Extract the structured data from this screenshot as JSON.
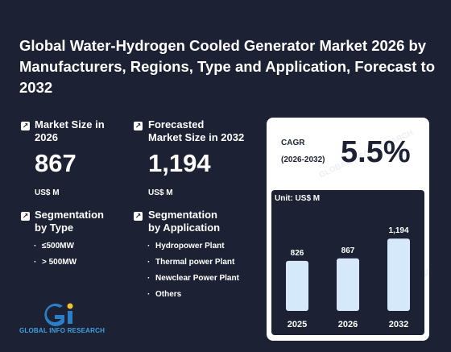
{
  "title": "Global Water-Hydrogen Cooled Generator Market 2026 by Manufacturers, Regions, Type and Application, Forecast to 2032",
  "metrics": {
    "market_size": {
      "label_line1": "Market Size in",
      "label_line2": "2026",
      "value": "867",
      "unit": "US$ M"
    },
    "forecast_size": {
      "label_line1": "Forecasted",
      "label_line2": "Market Size in 2032",
      "value": "1,194",
      "unit": "US$ M"
    }
  },
  "segmentation_type": {
    "label_line1": "Segmentation",
    "label_line2": "by Type",
    "items": [
      "≤500MW",
      "> 500MW"
    ]
  },
  "segmentation_application": {
    "label_line1": "Segmentation",
    "label_line2": "by Application",
    "items": [
      "Hydropower Plant",
      "Thermal power Plant",
      "Newclear Power Plant",
      "Others"
    ]
  },
  "cagr": {
    "label": "CAGR",
    "years": "(2026-2032)",
    "value": "5.5%"
  },
  "watermark": "GLOBAL INFO RESEARCH",
  "logo": {
    "text": "GLOBAL INFO RESEARCH"
  },
  "colors": {
    "background": "#1c2233",
    "bar": "#d6e9fb",
    "logo_blue": "#2a7fc9",
    "logo_yellow": "#f2c230"
  },
  "chart_data": {
    "type": "bar",
    "unit_label": "Unit: US$ M",
    "categories": [
      "2025",
      "2026",
      "2032"
    ],
    "values": [
      826,
      867,
      1194
    ],
    "data_labels": [
      "826",
      "867",
      "1,194"
    ],
    "ylim": [
      0,
      1250
    ]
  }
}
